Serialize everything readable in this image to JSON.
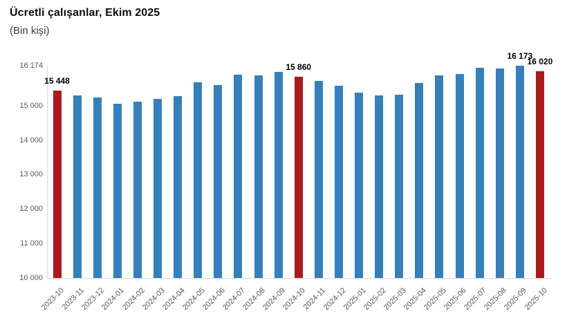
{
  "chart_data": {
    "type": "bar",
    "title": "Ücretli çalışanlar, Ekim 2025",
    "subtitle": "(Bin kişi)",
    "xlabel": "",
    "ylabel": "",
    "ylim": [
      10000,
      16174
    ],
    "grid": false,
    "legend": "none",
    "categories": [
      "2023-10",
      "2023-11",
      "2023-12",
      "2024-01",
      "2024-02",
      "2024-03",
      "2024-04",
      "2024-05",
      "2024-06",
      "2024-07",
      "2024-08",
      "2024-09",
      "2024-10",
      "2024-11",
      "2024-12",
      "2025-01",
      "2025-02",
      "2025-03",
      "2025-04",
      "2025-05",
      "2025-06",
      "2025-07",
      "2025-08",
      "2025-09",
      "2025-10"
    ],
    "values": [
      15448,
      15313,
      15243,
      15066,
      15124,
      15215,
      15282,
      15700,
      15601,
      15907,
      15890,
      15990,
      15860,
      15736,
      15590,
      15390,
      15300,
      15326,
      15670,
      15890,
      15937,
      16116,
      16086,
      16173,
      16020
    ],
    "highlight_indices": [
      0,
      12,
      24
    ],
    "data_labels": [
      {
        "index": 0,
        "text": "15 448"
      },
      {
        "index": 12,
        "text": "15 860"
      },
      {
        "index": 23,
        "text": "16 173"
      },
      {
        "index": 24,
        "text": "16 020"
      }
    ],
    "yticks": [
      {
        "value": 16174,
        "label": "16 174"
      },
      {
        "value": 15000,
        "label": "15 000"
      },
      {
        "value": 14000,
        "label": "14 000"
      },
      {
        "value": 13000,
        "label": "13 000"
      },
      {
        "value": 12000,
        "label": "12 000"
      },
      {
        "value": 11000,
        "label": "11 000"
      },
      {
        "value": 10000,
        "label": "10 000"
      }
    ],
    "colors": {
      "bar": "#3480bd",
      "highlight": "#ae191d",
      "axis_line": "#d9d9d9",
      "tick_text": "#595959",
      "value_label_text": "#000000"
    }
  }
}
